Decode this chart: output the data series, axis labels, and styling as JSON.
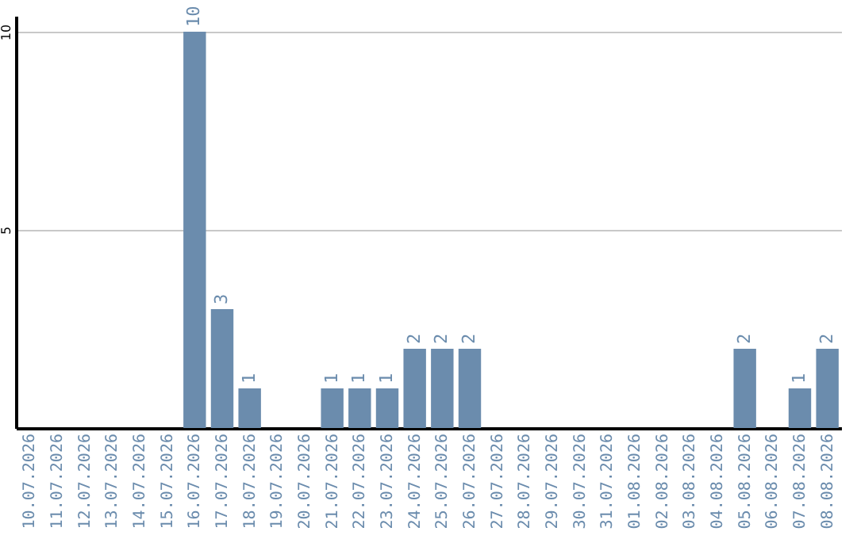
{
  "chart_data": {
    "type": "bar",
    "categories": [
      "10.07.2026",
      "11.07.2026",
      "12.07.2026",
      "13.07.2026",
      "14.07.2026",
      "15.07.2026",
      "16.07.2026",
      "17.07.2026",
      "18.07.2026",
      "19.07.2026",
      "20.07.2026",
      "21.07.2026",
      "22.07.2026",
      "23.07.2026",
      "24.07.2026",
      "25.07.2026",
      "26.07.2026",
      "27.07.2026",
      "28.07.2026",
      "29.07.2026",
      "30.07.2026",
      "31.07.2026",
      "01.08.2026",
      "02.08.2026",
      "03.08.2026",
      "04.08.2026",
      "05.08.2026",
      "06.08.2026",
      "07.08.2026",
      "08.08.2026"
    ],
    "values": [
      0,
      0,
      0,
      0,
      0,
      0,
      10,
      3,
      1,
      0,
      0,
      1,
      1,
      1,
      2,
      2,
      2,
      0,
      0,
      0,
      0,
      0,
      0,
      0,
      0,
      0,
      2,
      0,
      1,
      2
    ],
    "value_labels": [
      null,
      null,
      null,
      null,
      null,
      null,
      "10",
      "3",
      "1",
      null,
      null,
      "1",
      "1",
      "1",
      "2",
      "2",
      "2",
      null,
      null,
      null,
      null,
      null,
      null,
      null,
      null,
      null,
      "2",
      null,
      "1",
      "2"
    ],
    "color": "#6b8cad",
    "ylim": [
      0,
      10.4
    ],
    "yticks": [
      5,
      10
    ],
    "grid": "y"
  }
}
